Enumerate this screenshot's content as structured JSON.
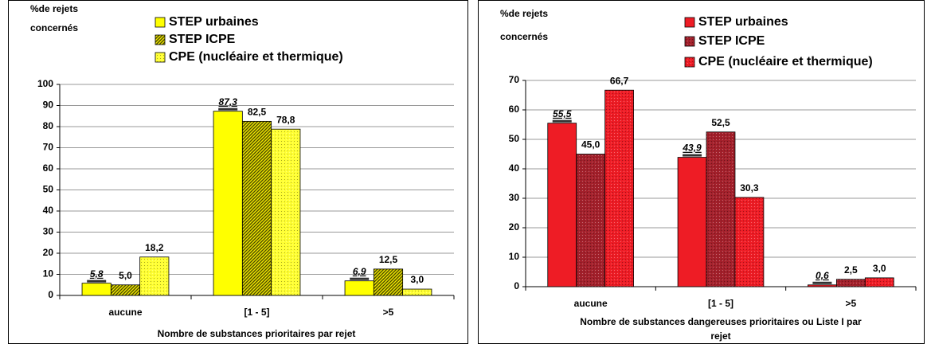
{
  "chart_data": [
    {
      "type": "bar",
      "ylabel": [
        "%de rejets",
        "concernés"
      ],
      "xlabel": [
        "Nombre de substances prioritaires par rejet"
      ],
      "categories": [
        "aucune",
        "[1 - 5]",
        ">5"
      ],
      "ylim": [
        0,
        100
      ],
      "yticks": [
        0,
        10,
        20,
        30,
        40,
        50,
        60,
        70,
        80,
        90,
        100
      ],
      "grid": true,
      "series": [
        {
          "name": "STEP urbaines",
          "color": "#ffff00",
          "pattern": "solid",
          "emphasis": true,
          "values": [
            5.8,
            87.3,
            6.9
          ],
          "value_labels": [
            "5,8",
            "87,3",
            "6,9"
          ]
        },
        {
          "name": "STEP ICPE",
          "color": "#b5b000",
          "pattern": "hatch",
          "emphasis": false,
          "values": [
            5.0,
            82.5,
            12.5
          ],
          "value_labels": [
            "5,0",
            "82,5",
            "12,5"
          ]
        },
        {
          "name": "CPE (nucléaire et thermique)",
          "color": "#ffff33",
          "pattern": "dots",
          "emphasis": false,
          "values": [
            18.2,
            78.8,
            3.0
          ],
          "value_labels": [
            "18,2",
            "78,8",
            "3,0"
          ]
        }
      ]
    },
    {
      "type": "bar",
      "ylabel": [
        "%de rejets",
        "concernés"
      ],
      "xlabel": [
        "Nombre de substances dangereuses prioritaires ou Liste I  par",
        "rejet"
      ],
      "categories": [
        "aucune",
        "[1 - 5]",
        ">5"
      ],
      "ylim": [
        0,
        70
      ],
      "yticks": [
        0,
        10,
        20,
        30,
        40,
        50,
        60,
        70
      ],
      "grid": true,
      "series": [
        {
          "name": "STEP urbaines",
          "color": "#ee1c25",
          "pattern": "solid",
          "emphasis": true,
          "values": [
            55.5,
            43.9,
            0.6
          ],
          "value_labels": [
            "55,5",
            "43,9",
            "0,6"
          ]
        },
        {
          "name": "STEP ICPE",
          "color": "#a3202b",
          "pattern": "dots",
          "emphasis": false,
          "values": [
            45.0,
            52.5,
            2.5
          ],
          "value_labels": [
            "45,0",
            "52,5",
            "2,5"
          ]
        },
        {
          "name": "CPE (nucléaire et thermique)",
          "color": "#ee1c25",
          "pattern": "dots",
          "emphasis": false,
          "values": [
            66.7,
            30.3,
            3.0
          ],
          "value_labels": [
            "66,7",
            "30,3",
            "3,0"
          ]
        }
      ]
    }
  ]
}
